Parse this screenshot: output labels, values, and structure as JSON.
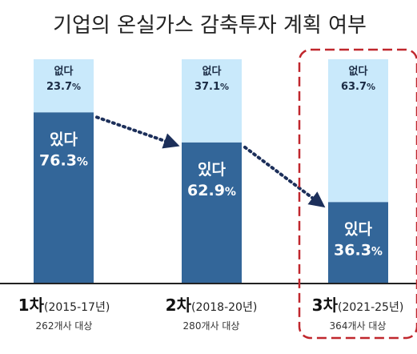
{
  "title": "기업의 온실가스 감축투자 계획 여부",
  "colors": {
    "no": "#c9e9fb",
    "yes": "#336699",
    "arrow": "#1c2f5a",
    "highlight": "#c0272d",
    "baseline": "#222222"
  },
  "chart_data": {
    "type": "bar",
    "stacked": true,
    "ylim": [
      0,
      100
    ],
    "categories": [
      {
        "round": "1차",
        "period": "(2015-17년)",
        "sample": "262개사 대상"
      },
      {
        "round": "2차",
        "period": "(2018-20년)",
        "sample": "280개사 대상"
      },
      {
        "round": "3차",
        "period": "(2021-25년)",
        "sample": "364개사 대상"
      }
    ],
    "series": [
      {
        "name": "있다",
        "values": [
          76.3,
          62.9,
          36.3
        ]
      },
      {
        "name": "없다",
        "values": [
          23.7,
          37.1,
          63.7
        ]
      }
    ],
    "highlight_index": 2
  }
}
